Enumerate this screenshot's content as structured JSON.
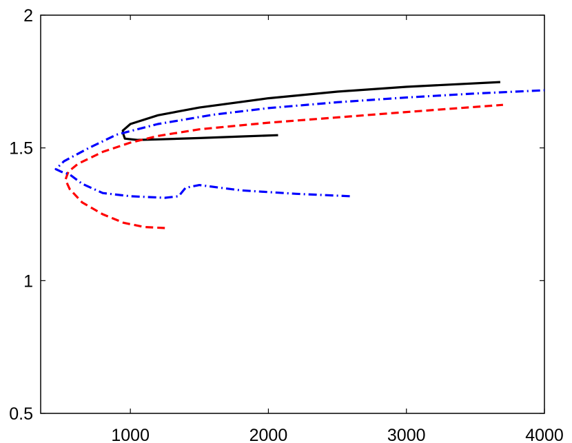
{
  "chart_data": {
    "type": "line",
    "title": "",
    "xlabel": "",
    "ylabel": "",
    "xlim": [
      350,
      4000
    ],
    "ylim": [
      0.5,
      2.0
    ],
    "x_ticks": [
      1000,
      2000,
      3000,
      4000
    ],
    "x_tick_labels": [
      "1000",
      "2000",
      "3000",
      "4000"
    ],
    "y_ticks": [
      0.5,
      1.0,
      1.5,
      2.0
    ],
    "y_tick_labels": [
      "0.5",
      "1",
      "1.5",
      "2"
    ],
    "grid": false,
    "legend": "none",
    "series": [
      {
        "color": "#000000",
        "style": "solid",
        "points": [
          [
            2070,
            1.548
          ],
          [
            1800,
            1.543
          ],
          [
            1500,
            1.537
          ],
          [
            1200,
            1.532
          ],
          [
            1050,
            1.53
          ],
          [
            960,
            1.535
          ],
          [
            950,
            1.55
          ],
          [
            945,
            1.565
          ],
          [
            1000,
            1.59
          ],
          [
            1200,
            1.623
          ],
          [
            1500,
            1.652
          ],
          [
            2000,
            1.687
          ],
          [
            2500,
            1.712
          ],
          [
            3000,
            1.73
          ],
          [
            3680,
            1.748
          ]
        ]
      },
      {
        "color": "#ff0000",
        "style": "dashed",
        "points": [
          [
            1250,
            1.198
          ],
          [
            1100,
            1.202
          ],
          [
            950,
            1.218
          ],
          [
            800,
            1.25
          ],
          [
            650,
            1.295
          ],
          [
            560,
            1.345
          ],
          [
            530,
            1.38
          ],
          [
            550,
            1.41
          ],
          [
            620,
            1.44
          ],
          [
            800,
            1.485
          ],
          [
            1000,
            1.52
          ],
          [
            1200,
            1.545
          ],
          [
            1500,
            1.57
          ],
          [
            2000,
            1.595
          ],
          [
            2500,
            1.615
          ],
          [
            3000,
            1.635
          ],
          [
            3700,
            1.662
          ]
        ]
      },
      {
        "color": "#0000ff",
        "style": "dashdot",
        "points": [
          [
            2590,
            1.318
          ],
          [
            2200,
            1.327
          ],
          [
            1800,
            1.34
          ],
          [
            1500,
            1.36
          ],
          [
            1400,
            1.35
          ],
          [
            1350,
            1.318
          ],
          [
            1250,
            1.312
          ],
          [
            1000,
            1.318
          ],
          [
            800,
            1.33
          ],
          [
            650,
            1.365
          ],
          [
            560,
            1.4
          ],
          [
            500,
            1.41
          ],
          [
            460,
            1.42
          ],
          [
            520,
            1.45
          ],
          [
            700,
            1.5
          ],
          [
            900,
            1.55
          ],
          [
            1200,
            1.59
          ],
          [
            1600,
            1.625
          ],
          [
            2000,
            1.65
          ],
          [
            2500,
            1.672
          ],
          [
            3000,
            1.69
          ],
          [
            3500,
            1.705
          ],
          [
            4000,
            1.717
          ]
        ]
      }
    ]
  }
}
